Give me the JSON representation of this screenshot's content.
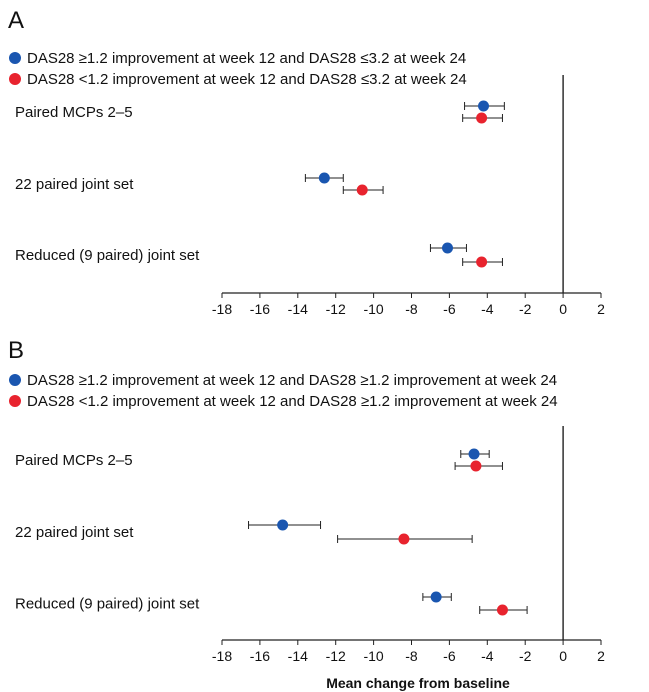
{
  "colors": {
    "blue": "#1a56b0",
    "red": "#e8232e",
    "line": "#222222"
  },
  "x_axis_title": "Mean change from baseline",
  "chart_data": [
    {
      "type": "scatter",
      "panel": "A",
      "xlim": [
        -18,
        2
      ],
      "xticks": [
        "-18",
        "-16",
        "-14",
        "-12",
        "-10",
        "-8",
        "-6",
        "-4",
        "-2",
        "0",
        "2"
      ],
      "categories": [
        "Paired MCPs 2–5",
        "22 paired joint set",
        "Reduced (9 paired) joint set"
      ],
      "series": [
        {
          "name": "DAS28 ≥1.2 improvement at week 12 and DAS28 ≤3.2 at week 24",
          "color": "blue",
          "values": [
            -4.2,
            -12.6,
            -6.1
          ],
          "err_low": [
            -5.2,
            -13.6,
            -7.0
          ],
          "err_high": [
            -3.1,
            -11.6,
            -5.1
          ]
        },
        {
          "name": "DAS28 <1.2 improvement at week 12 and DAS28 ≤3.2 at week 24",
          "color": "red",
          "values": [
            -4.3,
            -10.6,
            -4.3
          ],
          "err_low": [
            -5.3,
            -11.6,
            -5.3
          ],
          "err_high": [
            -3.2,
            -9.5,
            -3.2
          ]
        }
      ]
    },
    {
      "type": "scatter",
      "panel": "B",
      "xlim": [
        -18,
        2
      ],
      "xticks": [
        "-18",
        "-16",
        "-14",
        "-12",
        "-10",
        "-8",
        "-6",
        "-4",
        "-2",
        "0",
        "2"
      ],
      "categories": [
        "Paired MCPs 2–5",
        "22 paired joint set",
        "Reduced (9 paired) joint set"
      ],
      "series": [
        {
          "name": "DAS28 ≥1.2 improvement at week 12 and DAS28 ≥1.2 improvement at week 24",
          "color": "blue",
          "values": [
            -4.7,
            -14.8,
            -6.7
          ],
          "err_low": [
            -5.4,
            -16.6,
            -7.4
          ],
          "err_high": [
            -3.9,
            -12.8,
            -5.9
          ]
        },
        {
          "name": "DAS28 <1.2 improvement at week 12 and DAS28 ≥1.2 improvement at week 24",
          "color": "red",
          "values": [
            -4.6,
            -8.4,
            -3.2
          ],
          "err_low": [
            -5.7,
            -11.9,
            -4.4
          ],
          "err_high": [
            -3.2,
            -4.8,
            -1.9
          ]
        }
      ]
    }
  ]
}
